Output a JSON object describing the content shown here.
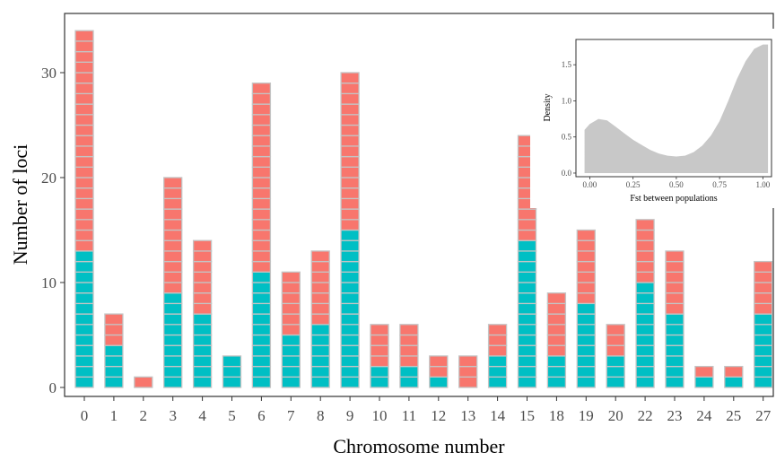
{
  "chart_data": [
    {
      "type": "bar",
      "xlabel": "Chromosome number",
      "ylabel": "Number of loci",
      "ylim": [
        0,
        34
      ],
      "yticks": [
        "0",
        "10",
        "20",
        "30"
      ],
      "categories": [
        "0",
        "1",
        "2",
        "3",
        "4",
        "5",
        "6",
        "7",
        "8",
        "9",
        "10",
        "11",
        "12",
        "13",
        "14",
        "15",
        "18",
        "19",
        "20",
        "22",
        "23",
        "24",
        "25",
        "27"
      ],
      "stacked": true,
      "series": [
        {
          "color": "#00BFC4",
          "values": [
            13,
            4,
            0,
            9,
            7,
            3,
            11,
            5,
            6,
            15,
            2,
            2,
            1,
            0,
            3,
            14,
            3,
            8,
            3,
            10,
            7,
            1,
            1,
            7
          ]
        },
        {
          "color": "#F8766D",
          "values": [
            21,
            3,
            1,
            11,
            7,
            0,
            18,
            6,
            7,
            15,
            4,
            4,
            2,
            3,
            3,
            10,
            6,
            7,
            3,
            6,
            6,
            1,
            1,
            5
          ]
        }
      ],
      "grid": false
    },
    {
      "type": "area",
      "xlabel": "Fst between populations",
      "ylabel": "Density",
      "xlim": [
        -0.08,
        1.05
      ],
      "ylim": [
        -0.05,
        1.85
      ],
      "xticks": [
        "0.00",
        "0.25",
        "0.50",
        "0.75",
        "1.00"
      ],
      "yticks": [
        "0.0",
        "0.5",
        "1.0",
        "1.5"
      ],
      "fill_color": "#c8c8c8",
      "x": [
        -0.03,
        0.0,
        0.05,
        0.1,
        0.15,
        0.2,
        0.25,
        0.3,
        0.35,
        0.4,
        0.45,
        0.5,
        0.55,
        0.6,
        0.65,
        0.7,
        0.75,
        0.8,
        0.85,
        0.9,
        0.95,
        1.0,
        1.03
      ],
      "y": [
        0.6,
        0.68,
        0.75,
        0.73,
        0.64,
        0.55,
        0.46,
        0.39,
        0.32,
        0.27,
        0.24,
        0.23,
        0.24,
        0.29,
        0.38,
        0.52,
        0.72,
        1.0,
        1.3,
        1.55,
        1.72,
        1.78,
        1.78
      ],
      "grid": false
    }
  ]
}
